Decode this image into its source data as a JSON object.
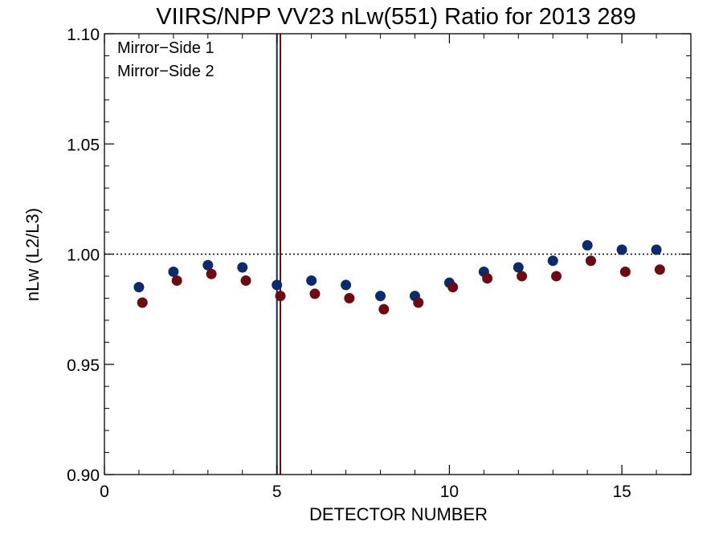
{
  "chart_data": {
    "type": "scatter",
    "title": "VIIRS/NPP VV23 nLw(551) Ratio for 2013 289",
    "xlabel": "DETECTOR NUMBER",
    "ylabel": "nLw (L2/L3)",
    "xlim": [
      0,
      17
    ],
    "ylim": [
      0.9,
      1.1
    ],
    "x_ticks": [
      0,
      5,
      10,
      15
    ],
    "x_tick_labels": [
      "0",
      "5",
      "10",
      "15"
    ],
    "y_ticks": [
      0.9,
      0.95,
      1.0,
      1.05,
      1.1
    ],
    "y_tick_labels": [
      "0.90",
      "0.95",
      "1.00",
      "1.05",
      "1.10"
    ],
    "reference_line_y": 1.0,
    "reference_line_style": "dotted",
    "grid": false,
    "legend_position": "top-left",
    "series": [
      {
        "name": "Mirror−Side 1",
        "color": "#0a2c6e",
        "x": [
          1,
          2,
          3,
          4,
          5,
          6,
          7,
          8,
          9,
          10,
          11,
          12,
          13,
          14,
          15,
          16
        ],
        "values": [
          0.985,
          0.992,
          0.995,
          0.994,
          0.986,
          0.988,
          0.986,
          0.981,
          0.981,
          0.987,
          0.992,
          0.994,
          0.997,
          1.004,
          1.002,
          1.002
        ],
        "vline_x": 5.0
      },
      {
        "name": "Mirror−Side 2",
        "color": "#6e0a12",
        "x": [
          1.1,
          2.1,
          3.1,
          4.1,
          5.1,
          6.1,
          7.1,
          8.1,
          9.1,
          10.1,
          11.1,
          12.1,
          13.1,
          14.1,
          15.1,
          16.1
        ],
        "values": [
          0.978,
          0.988,
          0.991,
          0.988,
          0.981,
          0.982,
          0.98,
          0.975,
          0.978,
          0.985,
          0.989,
          0.99,
          0.99,
          0.997,
          0.992,
          0.993
        ],
        "vline_x": 5.1
      }
    ]
  }
}
